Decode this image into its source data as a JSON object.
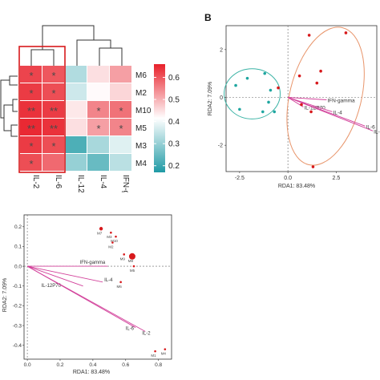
{
  "panel_label_b": "B",
  "colors": {
    "low": "#1f9aa5",
    "mid": "#ffffff",
    "high": "#e8202a",
    "arrow": "#d2409a",
    "point_red": "#d7191c",
    "point_teal": "#1fa6a0",
    "ellipse_orange": "#e8956b",
    "ellipse_teal": "#3ab3a5",
    "highlight_box": "#d7191c"
  },
  "chart_data": [
    {
      "type": "heatmap",
      "rows": [
        "M6",
        "M2",
        "M10",
        "M5",
        "M3",
        "M4"
      ],
      "columns": [
        "IL-2",
        "IL-6",
        "IL-12P70",
        "IL-4",
        "IFN-gamma"
      ],
      "values": [
        [
          0.62,
          0.6,
          0.33,
          0.45,
          0.52
        ],
        [
          0.63,
          0.61,
          0.36,
          0.42,
          0.46
        ],
        [
          0.64,
          0.63,
          0.44,
          0.55,
          0.57
        ],
        [
          0.65,
          0.64,
          0.45,
          0.52,
          0.55
        ],
        [
          0.63,
          0.61,
          0.22,
          0.32,
          0.38
        ],
        [
          0.61,
          0.58,
          0.3,
          0.25,
          0.34
        ]
      ],
      "stars": [
        [
          "*",
          "*",
          "",
          "",
          ""
        ],
        [
          "*",
          "*",
          "",
          "",
          ""
        ],
        [
          "**",
          "**",
          "",
          "*",
          "*"
        ],
        [
          "**",
          "**",
          "",
          "*",
          "*"
        ],
        [
          "*",
          "*",
          "",
          "",
          ""
        ],
        [
          "*",
          "",
          "",
          "",
          ""
        ]
      ],
      "colorbar": {
        "min": 0.17,
        "max": 0.66,
        "ticks": [
          "0.6",
          "0.5",
          "0.4",
          "0.3",
          "0.2"
        ],
        "tick_values": [
          0.6,
          0.5,
          0.4,
          0.3,
          0.2
        ]
      }
    },
    {
      "type": "scatter",
      "xlabel": "RDA1: 83.48%",
      "ylabel": "RDA2: 7.09%",
      "xlim": [
        -3.2,
        4.6
      ],
      "ylim": [
        -3.1,
        3.0
      ],
      "xticks": [
        -2.5,
        0.0,
        2.5
      ],
      "xtick_labels": [
        "-2.5",
        "0.0",
        "2.5"
      ],
      "yticks": [
        2,
        0,
        -2
      ],
      "ytick_labels": [
        "2",
        "0",
        "-2"
      ],
      "series": [
        {
          "color": "red",
          "points": [
            [
              1.1,
              2.6
            ],
            [
              3.0,
              2.7
            ],
            [
              1.7,
              1.1
            ],
            [
              1.5,
              0.6
            ],
            [
              0.6,
              0.9
            ],
            [
              -0.5,
              0.4
            ],
            [
              0.7,
              -0.3
            ],
            [
              1.2,
              -0.6
            ],
            [
              1.3,
              -2.9
            ]
          ]
        },
        {
          "color": "teal",
          "points": [
            [
              -2.7,
              0.5
            ],
            [
              -2.1,
              0.8
            ],
            [
              -1.2,
              1.0
            ],
            [
              -0.9,
              0.3
            ],
            [
              -1.0,
              -0.2
            ],
            [
              -2.5,
              -0.5
            ],
            [
              -1.3,
              -0.6
            ],
            [
              -0.7,
              -0.6
            ]
          ]
        }
      ],
      "arrows": [
        {
          "label": "IFN-gamma",
          "x": 2.0,
          "y": -0.1
        },
        {
          "label": "IL-12P70",
          "x": 0.8,
          "y": -0.4
        },
        {
          "label": "IL-4",
          "x": 2.3,
          "y": -0.6
        },
        {
          "label": "IL-6",
          "x": 4.0,
          "y": -1.2
        },
        {
          "label": "IL-2",
          "x": 4.4,
          "y": -1.4
        }
      ],
      "ellipses": [
        {
          "color": "orange",
          "cx": 1.95,
          "cy": 0.05,
          "rx": 1.85,
          "ry": 2.95,
          "rot": 14
        },
        {
          "color": "teal",
          "cx": -1.85,
          "cy": 0.15,
          "rx": 1.45,
          "ry": 1.05,
          "rot": 0
        }
      ]
    },
    {
      "type": "scatter",
      "xlabel": "RDA1: 83.48%",
      "ylabel": "RDA2: 7.09%",
      "xlim": [
        -0.02,
        0.88
      ],
      "ylim": [
        -0.47,
        0.26
      ],
      "xticks": [
        0.0,
        0.2,
        0.4,
        0.6,
        0.8
      ],
      "xtick_labels": [
        "0.0",
        "0.2",
        "0.4",
        "0.6",
        "0.8"
      ],
      "yticks": [
        0.2,
        0.1,
        0.0,
        -0.1,
        -0.2,
        -0.3,
        -0.4
      ],
      "ytick_labels": [
        "0.2",
        "0.1",
        "0.0",
        "-0.1",
        "-0.2",
        "-0.3",
        "-0.4"
      ],
      "points": [
        {
          "label": "M7",
          "x": 0.45,
          "y": 0.19,
          "size": "small"
        },
        {
          "label": "M3",
          "x": 0.51,
          "y": 0.17,
          "size": "tiny"
        },
        {
          "label": "M10",
          "x": 0.54,
          "y": 0.15,
          "size": "tiny"
        },
        {
          "label": "M2",
          "x": 0.52,
          "y": 0.12,
          "size": "tiny"
        },
        {
          "label": "M9",
          "x": 0.59,
          "y": 0.06,
          "size": "tiny"
        },
        {
          "label": "M8",
          "x": 0.64,
          "y": 0.05,
          "size": "large"
        },
        {
          "label": "M5",
          "x": 0.65,
          "y": 0.0,
          "size": "tiny"
        },
        {
          "label": "M6",
          "x": 0.57,
          "y": -0.08,
          "size": "tiny"
        },
        {
          "label": "M1",
          "x": 0.78,
          "y": -0.43,
          "size": "tiny"
        },
        {
          "label": "M4",
          "x": 0.84,
          "y": -0.42,
          "size": "tiny"
        }
      ],
      "arrows": [
        {
          "label": "IFN-gamma",
          "x": 0.49,
          "y": 0.0
        },
        {
          "label": "IL-4",
          "x": 0.46,
          "y": -0.08
        },
        {
          "label": "IL-12P70",
          "x": 0.34,
          "y": -0.1
        },
        {
          "label": "IL-6",
          "x": 0.66,
          "y": -0.31
        },
        {
          "label": "IL-2",
          "x": 0.72,
          "y": -0.33
        }
      ]
    }
  ]
}
